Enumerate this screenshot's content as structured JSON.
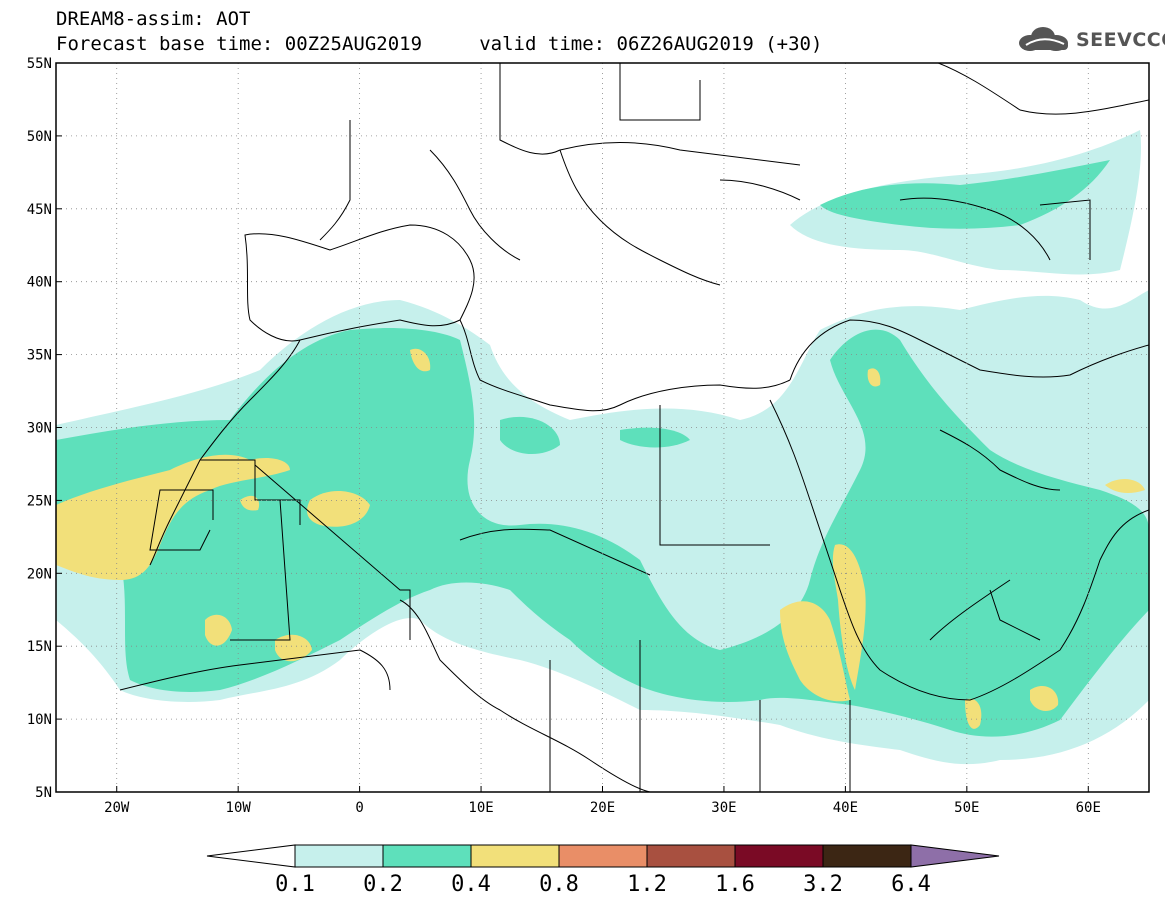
{
  "title": {
    "line1": "DREAM8-assim: AOT",
    "line2": "Forecast base time: 00Z25AUG2019     valid time: 06Z26AUG2019 (+30)"
  },
  "logo": {
    "text": "SEEVCCC"
  },
  "map": {
    "lon_range": [
      -25,
      65
    ],
    "lat_range": [
      5,
      55
    ],
    "lon_ticks": [
      {
        "lon": -20,
        "label": "20W"
      },
      {
        "lon": -10,
        "label": "10W"
      },
      {
        "lon": 0,
        "label": "0"
      },
      {
        "lon": 10,
        "label": "10E"
      },
      {
        "lon": 20,
        "label": "20E"
      },
      {
        "lon": 30,
        "label": "30E"
      },
      {
        "lon": 40,
        "label": "40E"
      },
      {
        "lon": 50,
        "label": "50E"
      },
      {
        "lon": 60,
        "label": "60E"
      }
    ],
    "lat_ticks": [
      {
        "lat": 55,
        "label": "55N"
      },
      {
        "lat": 50,
        "label": "50N"
      },
      {
        "lat": 45,
        "label": "45N"
      },
      {
        "lat": 40,
        "label": "40N"
      },
      {
        "lat": 35,
        "label": "35N"
      },
      {
        "lat": 30,
        "label": "30N"
      },
      {
        "lat": 25,
        "label": "25N"
      },
      {
        "lat": 20,
        "label": "20N"
      },
      {
        "lat": 15,
        "label": "15N"
      },
      {
        "lat": 10,
        "label": "10N"
      },
      {
        "lat": 5,
        "label": "5N"
      }
    ],
    "colors": {
      "c01": "#c6f0ec",
      "c02": "#5ee0bb",
      "c04": "#f2e07a",
      "border": "#000000",
      "grid": "#888888"
    }
  },
  "colorbar": {
    "boundaries": [
      "0.1",
      "0.2",
      "0.4",
      "0.8",
      "1.2",
      "1.6",
      "3.2",
      "6.4"
    ],
    "bins": [
      {
        "range": "0.1-0.2",
        "color": "#c6f0ec"
      },
      {
        "range": "0.2-0.4",
        "color": "#5ee0bb"
      },
      {
        "range": "0.4-0.8",
        "color": "#f2e07a"
      },
      {
        "range": "0.8-1.2",
        "color": "#e98e67"
      },
      {
        "range": "1.2-1.6",
        "color": "#a85040"
      },
      {
        "range": "1.6-3.2",
        "color": "#7a0a25"
      },
      {
        "range": "3.2-6.4",
        "color": "#3c2614"
      }
    ],
    "under_color": "#ffffff",
    "over_color": "#8e6fa8"
  }
}
